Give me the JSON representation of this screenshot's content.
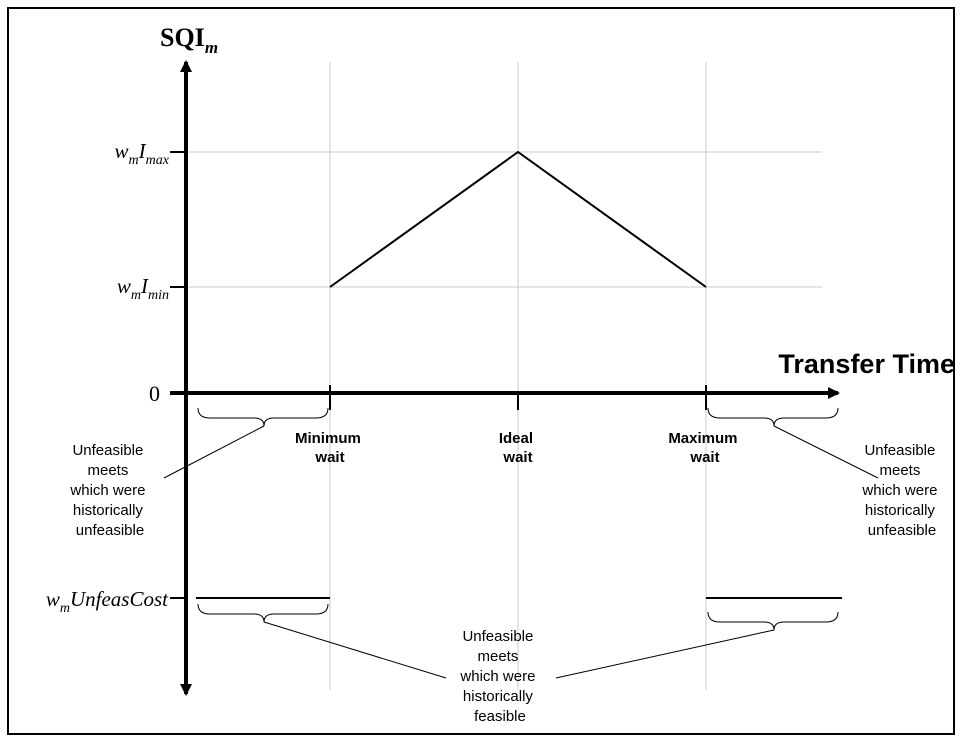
{
  "diagram": {
    "y_axis_title": {
      "main": "SQI",
      "subscript": "m"
    },
    "x_axis_title": "Transfer Time",
    "y_labels": {
      "imax": {
        "w": "w",
        "w_sub": "m",
        "i": "I",
        "i_sub": "max"
      },
      "imin": {
        "w": "w",
        "w_sub": "m",
        "i": "I",
        "i_sub": "min"
      },
      "zero": "0",
      "unfeas": {
        "w": "w",
        "w_sub": "m",
        "rest": "UnfeasCost"
      }
    },
    "x_ticks": [
      {
        "line1": "Minimum",
        "line2": "wait"
      },
      {
        "line1": "Ideal",
        "line2": "wait"
      },
      {
        "line1": "Maximum",
        "line2": "wait"
      }
    ],
    "annotations": {
      "left_unfeasible": [
        "Unfeasible",
        "meets",
        "which were",
        "historically",
        "unfeasible"
      ],
      "right_unfeasible": [
        "Unfeasible",
        "meets",
        "which were",
        "historically",
        "unfeasible"
      ],
      "bottom_feasible": [
        "Unfeasible",
        "meets",
        "which were",
        "historically",
        "feasible"
      ]
    }
  }
}
